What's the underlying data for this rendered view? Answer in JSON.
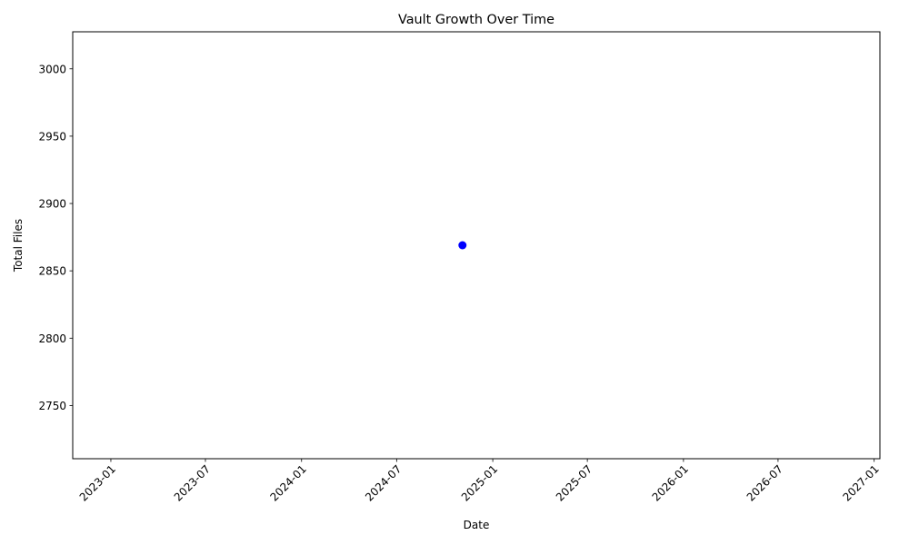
{
  "chart_data": {
    "type": "scatter",
    "title": "Vault Growth Over Time",
    "xlabel": "Date",
    "ylabel": "Total Files",
    "x_ticks": [
      "2023-01",
      "2023-07",
      "2024-01",
      "2024-07",
      "2025-01",
      "2025-07",
      "2026-01",
      "2026-07",
      "2027-01"
    ],
    "xlim": [
      "2022-10-20",
      "2027-01-12"
    ],
    "y_ticks": [
      2750,
      2800,
      2850,
      2900,
      2950,
      3000
    ],
    "ylim": [
      2710.5,
      3027.5
    ],
    "points": [
      {
        "x": "2024-11-04",
        "y": 2869
      }
    ],
    "marker_color": "#0000ff",
    "grid": false,
    "legend": "none"
  }
}
